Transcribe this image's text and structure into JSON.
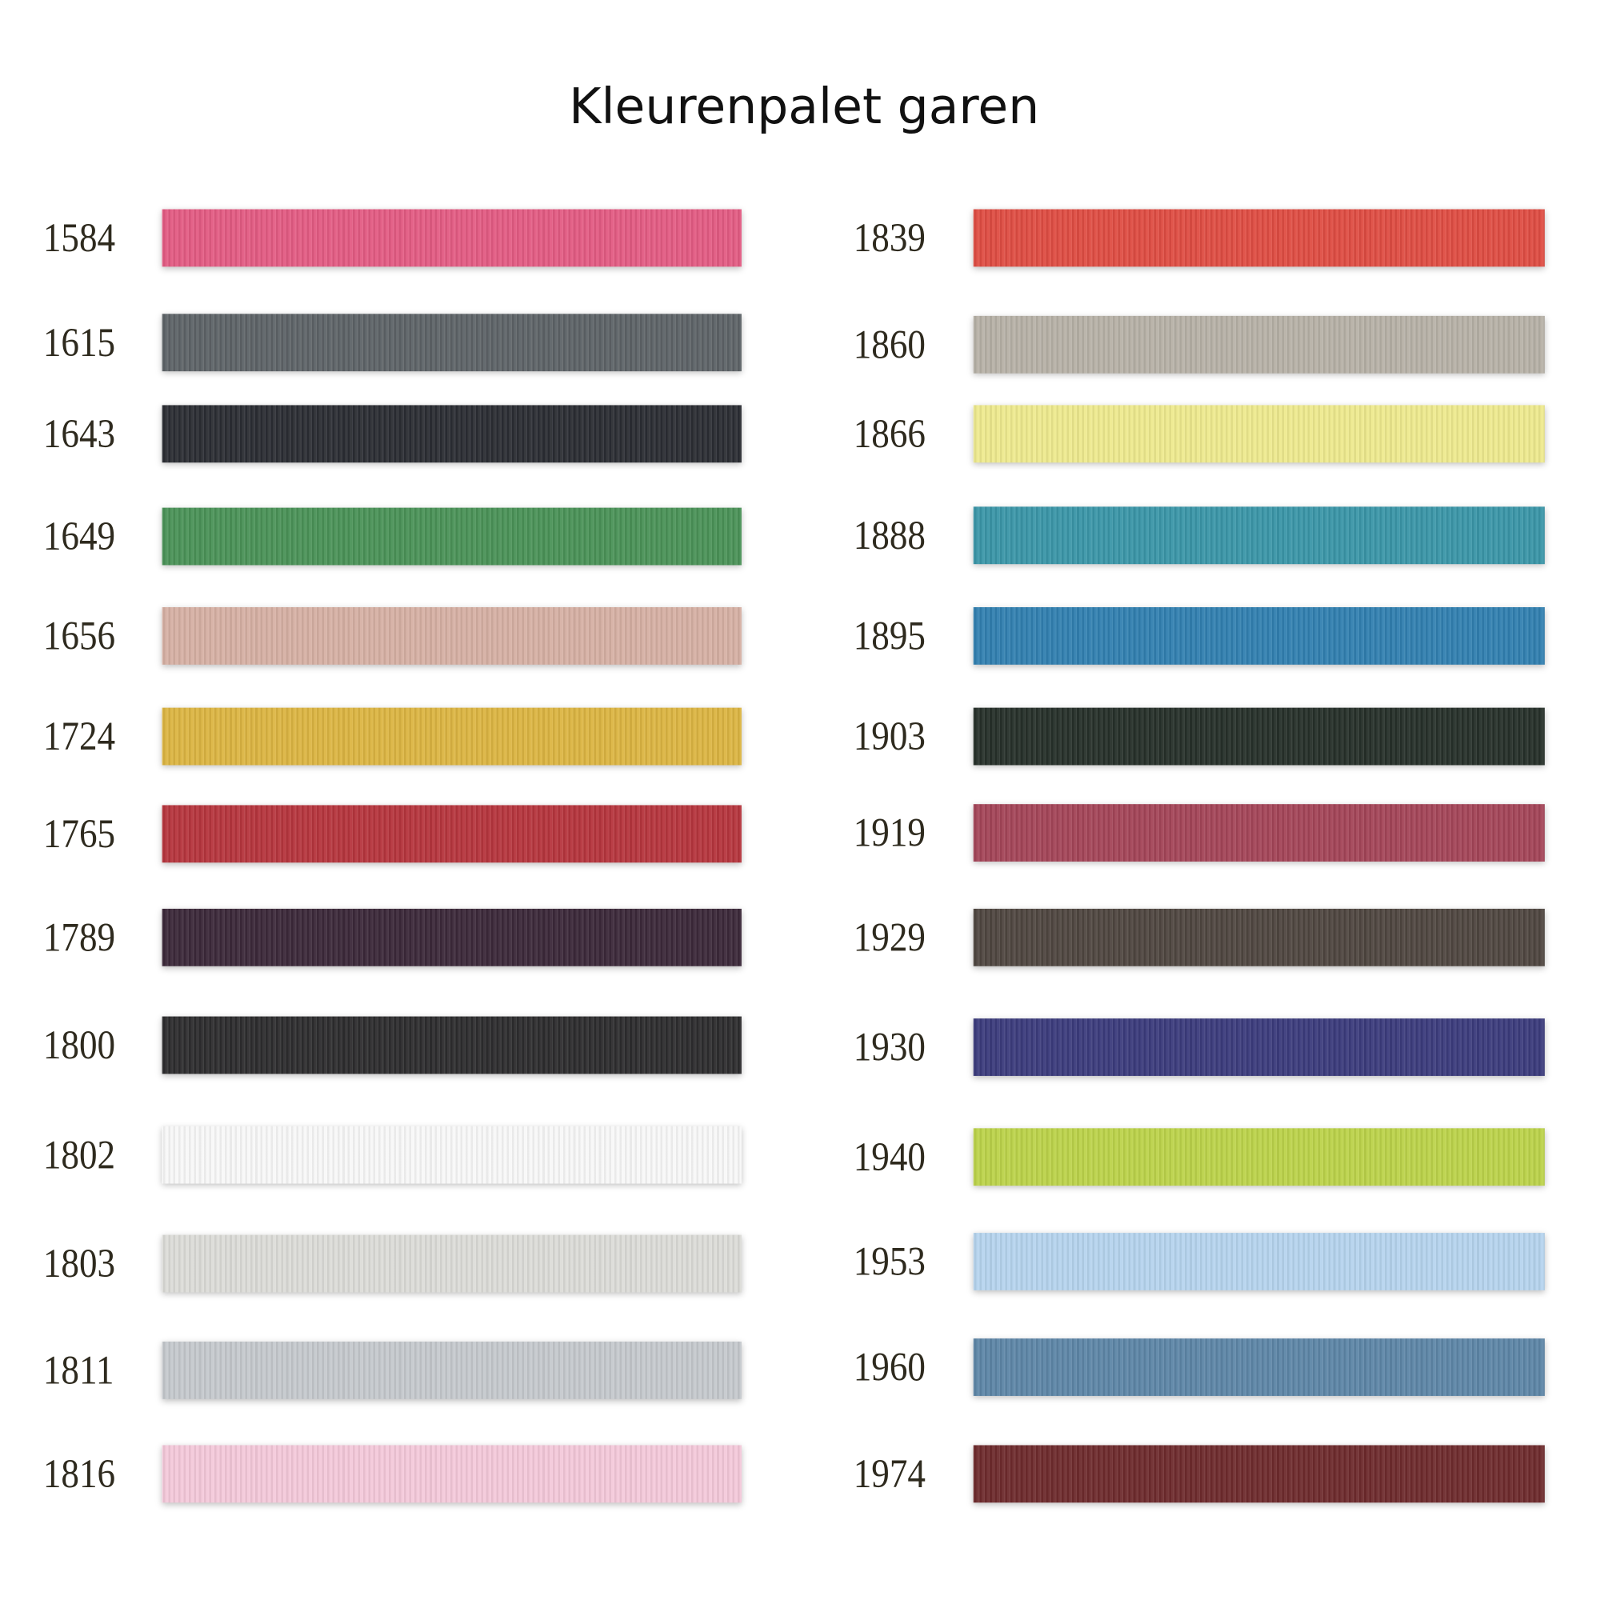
{
  "title": "Kleurenpalet garen",
  "left": [
    {
      "code": "1584",
      "color": "#e35b83"
    },
    {
      "code": "1615",
      "color": "#5d6367"
    },
    {
      "code": "1643",
      "color": "#2b2d33"
    },
    {
      "code": "1649",
      "color": "#4a9257"
    },
    {
      "code": "1656",
      "color": "#d6b0a4"
    },
    {
      "code": "1724",
      "color": "#dcb542"
    },
    {
      "code": "1765",
      "color": "#b6353d"
    },
    {
      "code": "1789",
      "color": "#3b2839"
    },
    {
      "code": "1800",
      "color": "#2d2c2e"
    },
    {
      "code": "1802",
      "color": "#f8f8f8"
    },
    {
      "code": "1803",
      "color": "#dcdcd8"
    },
    {
      "code": "1811",
      "color": "#c5c9cd"
    },
    {
      "code": "1816",
      "color": "#f4c9da"
    }
  ],
  "right": [
    {
      "code": "1839",
      "color": "#df4d43"
    },
    {
      "code": "1860",
      "color": "#b7b1a7"
    },
    {
      "code": "1866",
      "color": "#eeea8e"
    },
    {
      "code": "1888",
      "color": "#3a96a8"
    },
    {
      "code": "1895",
      "color": "#3180b0"
    },
    {
      "code": "1903",
      "color": "#263029"
    },
    {
      "code": "1919",
      "color": "#a44558"
    },
    {
      "code": "1929",
      "color": "#4f4640"
    },
    {
      "code": "1930",
      "color": "#3b3b7c"
    },
    {
      "code": "1940",
      "color": "#bcd34a"
    },
    {
      "code": "1953",
      "color": "#b6d4ee"
    },
    {
      "code": "1960",
      "color": "#5d86a7"
    },
    {
      "code": "1974",
      "color": "#6e2b2d"
    }
  ]
}
